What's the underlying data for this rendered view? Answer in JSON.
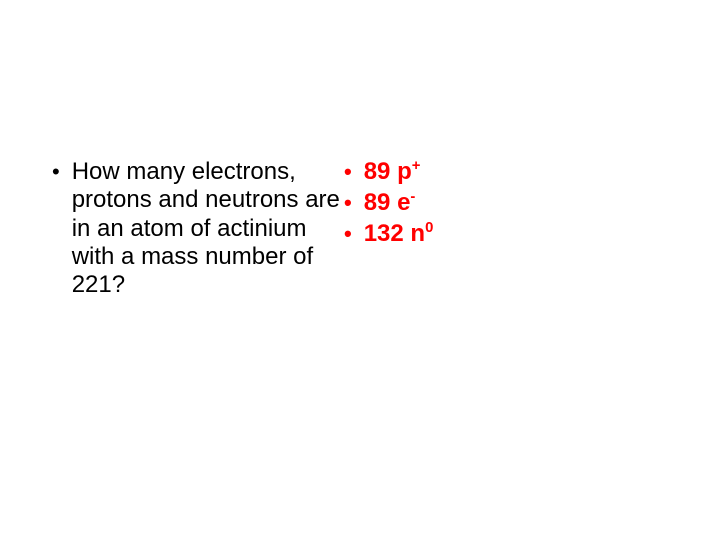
{
  "background_color": "#ffffff",
  "text_color": "#000000",
  "answer_color": "#ff0000",
  "font_family": "Arial",
  "question_fontsize": 24,
  "answer_fontsize": 24,
  "question": "How many electrons, protons and neutrons are in an atom of actinium with a mass number of 221?",
  "answers": [
    {
      "base": "89 p",
      "sup": "+"
    },
    {
      "base": "89 e",
      "sup": "-"
    },
    {
      "base": "132 n",
      "sup": "0"
    }
  ]
}
